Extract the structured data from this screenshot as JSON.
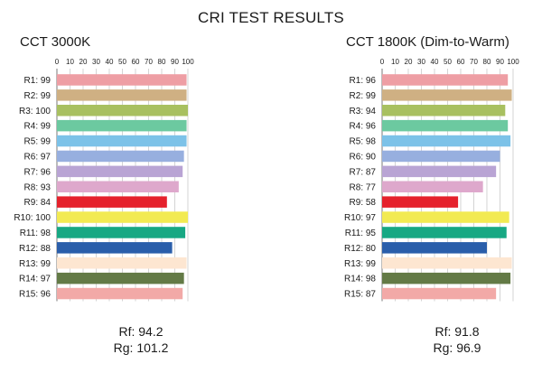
{
  "title": "CRI TEST RESULTS",
  "chart_data": [
    {
      "type": "bar",
      "orientation": "horizontal",
      "title": "CCT 3000K",
      "xlim": [
        0,
        100
      ],
      "x_ticks": [
        0,
        10,
        20,
        30,
        40,
        50,
        60,
        70,
        80,
        90,
        100
      ],
      "grid": true,
      "categories": [
        "R1: 99",
        "R2: 99",
        "R3: 100",
        "R4: 99",
        "R5: 99",
        "R6: 97",
        "R7: 96",
        "R8: 93",
        "R9: 84",
        "R10: 100",
        "R11: 98",
        "R12: 88",
        "R13: 99",
        "R14: 97",
        "R15: 96"
      ],
      "values": [
        99,
        99,
        100,
        99,
        99,
        97,
        96,
        93,
        84,
        100,
        98,
        88,
        99,
        97,
        96
      ],
      "stats": {
        "rf": "Rf: 94.2",
        "rg": "Rg: 101.2"
      }
    },
    {
      "type": "bar",
      "orientation": "horizontal",
      "title": "CCT 1800K (Dim-to-Warm)",
      "xlim": [
        0,
        100
      ],
      "x_ticks": [
        0,
        10,
        20,
        30,
        40,
        50,
        60,
        70,
        80,
        90,
        100
      ],
      "grid": true,
      "categories": [
        "R1: 96",
        "R2: 99",
        "R3: 94",
        "R4: 96",
        "R5: 98",
        "R6: 90",
        "R7: 87",
        "R8: 77",
        "R9: 58",
        "R10: 97",
        "R11: 95",
        "R12: 80",
        "R13: 99",
        "R14: 98",
        "R15: 87"
      ],
      "values": [
        96,
        99,
        94,
        96,
        98,
        90,
        87,
        77,
        58,
        97,
        95,
        80,
        99,
        98,
        87
      ],
      "stats": {
        "rf": "Rf: 91.8",
        "rg": "Rg: 96.9"
      }
    }
  ],
  "bar_colors": [
    "#ee9ea4",
    "#cfb083",
    "#a8c060",
    "#6cc9a0",
    "#7cc2e8",
    "#97afdf",
    "#b9a4d4",
    "#dea8cc",
    "#e5212c",
    "#f2ea52",
    "#17a883",
    "#2a5eaa",
    "#fde6d1",
    "#637a46",
    "#f2a9a7"
  ]
}
